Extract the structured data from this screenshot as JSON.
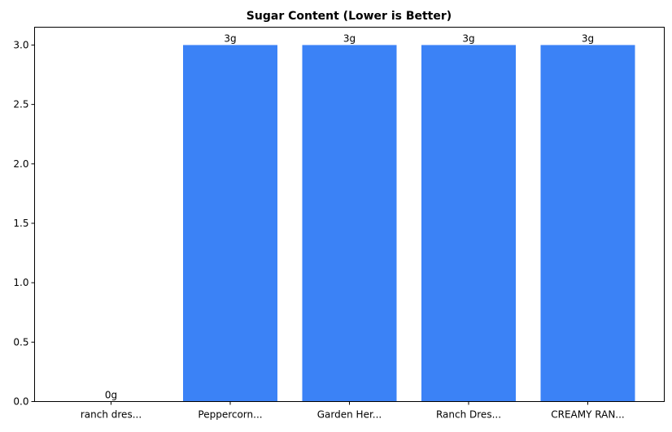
{
  "chart_data": {
    "type": "bar",
    "title": "Sugar Content (Lower is Better)",
    "xlabel": "",
    "ylabel": "",
    "categories": [
      "ranch dres...",
      "Peppercorn...",
      "Garden Her...",
      "Ranch Dres...",
      "CREAMY RAN..."
    ],
    "values": [
      0,
      3,
      3,
      3,
      3
    ],
    "data_labels": [
      "0g",
      "3g",
      "3g",
      "3g",
      "3g"
    ],
    "ylim": [
      0,
      3.15
    ],
    "yticks": [
      0.0,
      0.5,
      1.0,
      1.5,
      2.0,
      2.5,
      3.0
    ],
    "ytick_labels": [
      "0.0",
      "0.5",
      "1.0",
      "1.5",
      "2.0",
      "2.5",
      "3.0"
    ],
    "grid": false,
    "bar_color": "#3b82f6"
  }
}
